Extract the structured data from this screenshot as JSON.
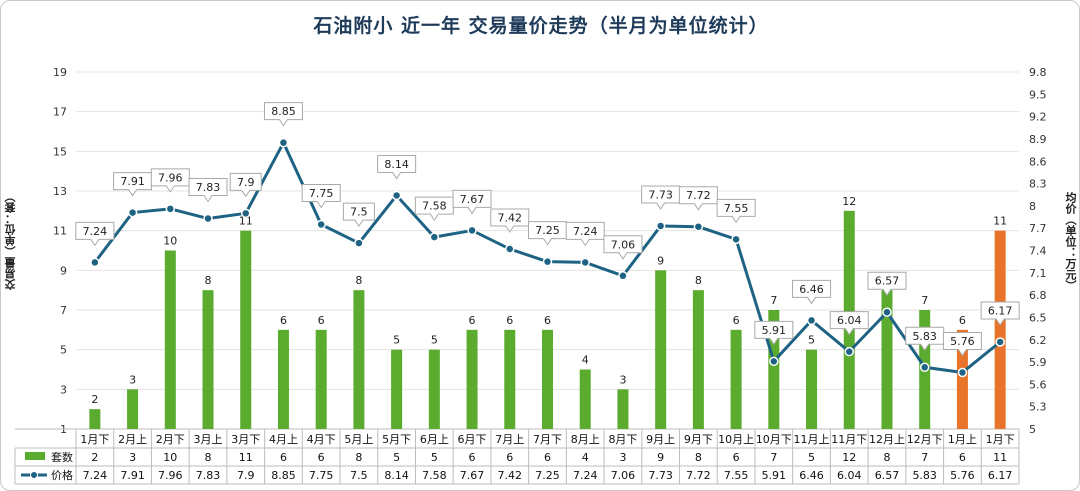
{
  "chart_data": {
    "type": "bar+line",
    "title": "石油附小 近一年 交易量价走势（半月为单位统计）",
    "ylabel_left": "交易量（单位：套）",
    "ylabel_right": "均价（单位：万元）",
    "ylim_left": [
      1,
      19
    ],
    "yticks_left": [
      1,
      3,
      5,
      7,
      9,
      11,
      13,
      15,
      17,
      19
    ],
    "ylim_right": [
      5,
      9.8
    ],
    "yticks_right": [
      5,
      5.3,
      5.6,
      5.9,
      6.2,
      6.5,
      6.8,
      7.1,
      7.4,
      7.7,
      8,
      8.3,
      8.6,
      8.9,
      9.2,
      9.5,
      9.8
    ],
    "categories": [
      "1月下",
      "2月上",
      "2月下",
      "3月上",
      "3月下",
      "4月上",
      "4月下",
      "5月上",
      "5月下",
      "6月上",
      "6月下",
      "7月上",
      "7月下",
      "8月上",
      "8月下",
      "9月上",
      "9月下",
      "10月上",
      "10月下",
      "11月上",
      "11月下",
      "12月上",
      "12月下",
      "1月上",
      "1月下"
    ],
    "series": [
      {
        "name": "套数",
        "type": "bar",
        "axis": "left",
        "color": "#5aab2e",
        "highlight_color": "#e8732a",
        "highlight_indices": [
          23,
          24
        ],
        "values": [
          2,
          3,
          10,
          8,
          11,
          6,
          6,
          8,
          5,
          5,
          6,
          6,
          6,
          4,
          3,
          9,
          8,
          6,
          7,
          5,
          12,
          8,
          7,
          6,
          11
        ]
      },
      {
        "name": "价格",
        "type": "line",
        "axis": "right",
        "color": "#1f6384",
        "values": [
          7.24,
          7.91,
          7.96,
          7.83,
          7.9,
          8.85,
          7.75,
          7.5,
          8.14,
          7.58,
          7.67,
          7.42,
          7.25,
          7.24,
          7.06,
          7.73,
          7.72,
          7.55,
          5.91,
          6.46,
          6.04,
          6.57,
          5.83,
          5.76,
          6.17
        ]
      }
    ],
    "grid": true,
    "legend": "table-bottom"
  }
}
